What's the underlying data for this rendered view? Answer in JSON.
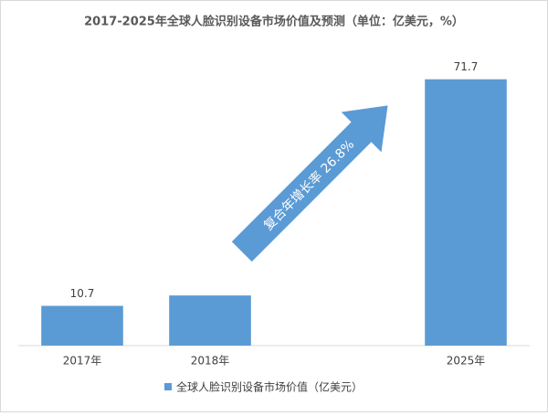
{
  "chart_data": {
    "type": "bar",
    "title": "2017-2025年全球人脸识别设备市场价值及预测（单位：亿美元，%）",
    "categories": [
      "2017年",
      "2018年",
      null,
      "2025年"
    ],
    "series": [
      {
        "name": "全球人脸识别设备市场价值（亿美元）",
        "color": "#5b9bd5",
        "values": [
          10.7,
          13.5,
          null,
          71.7
        ],
        "value_labels": [
          "10.7",
          null,
          null,
          "71.7"
        ]
      }
    ],
    "ylim": [
      0,
      80
    ],
    "annotations": [
      "复合年增长率 26.8%"
    ],
    "legend": "bottom"
  }
}
